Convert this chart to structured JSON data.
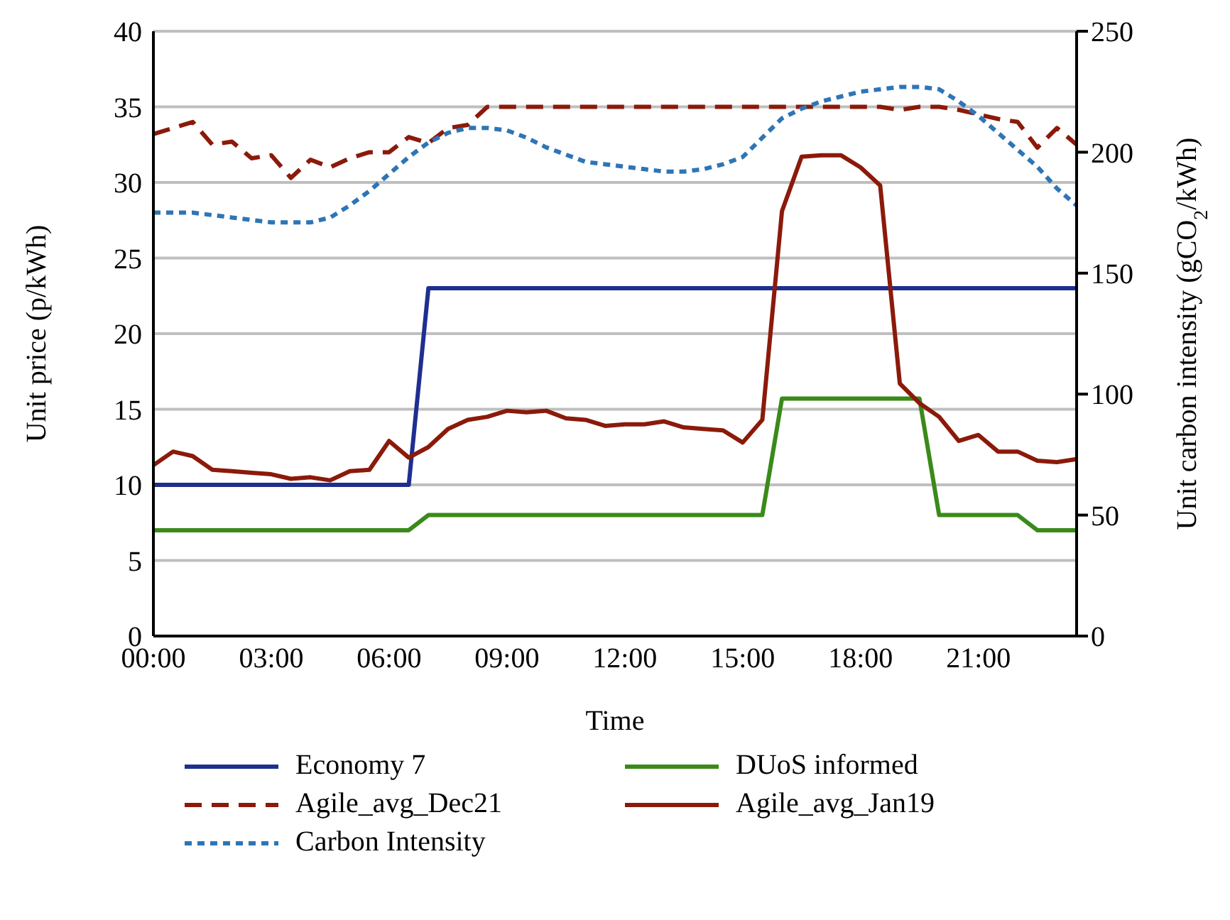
{
  "chart_data": {
    "type": "line",
    "xlabel": "Time",
    "ylabel": "Unit price (p/kWh)",
    "y2label": "Unit carbon intensity (gCO$_{2}$/kWh)",
    "x": [
      0,
      0.5,
      1,
      1.5,
      2,
      2.5,
      3,
      3.5,
      4,
      4.5,
      5,
      5.5,
      6,
      6.5,
      7,
      7.5,
      8,
      8.5,
      9,
      9.5,
      10,
      10.5,
      11,
      11.5,
      12,
      12.5,
      13,
      13.5,
      14,
      14.5,
      15,
      15.5,
      16,
      16.5,
      17,
      17.5,
      18,
      18.5,
      19,
      19.5,
      20,
      20.5,
      21,
      21.5,
      22,
      22.5,
      23,
      23.5
    ],
    "xlim": [
      0,
      23.5
    ],
    "xticks": [
      {
        "value": 0,
        "label": "00:00"
      },
      {
        "value": 3,
        "label": "03:00"
      },
      {
        "value": 6,
        "label": "06:00"
      },
      {
        "value": 9,
        "label": "09:00"
      },
      {
        "value": 12,
        "label": "12:00"
      },
      {
        "value": 15,
        "label": "15:00"
      },
      {
        "value": 18,
        "label": "18:00"
      },
      {
        "value": 21,
        "label": "21:00"
      }
    ],
    "ylim": [
      0,
      40
    ],
    "yticks": [
      0,
      5,
      10,
      15,
      20,
      25,
      30,
      35,
      40
    ],
    "y2lim": [
      0,
      250
    ],
    "y2ticks": [
      0,
      50,
      100,
      150,
      200,
      250
    ],
    "grid": "y",
    "legend": "bottom",
    "marker": "none",
    "series": [
      {
        "name": "Economy 7",
        "color": "#1f2f8f",
        "line_style": "solid",
        "values": [
          10,
          10,
          10,
          10,
          10,
          10,
          10,
          10,
          10,
          10,
          10,
          10,
          10,
          10,
          23,
          23,
          23,
          23,
          23,
          23,
          23,
          23,
          23,
          23,
          23,
          23,
          23,
          23,
          23,
          23,
          23,
          23,
          23,
          23,
          23,
          23,
          23,
          23,
          23,
          23,
          23,
          23,
          23,
          23,
          23,
          23,
          23,
          23
        ]
      },
      {
        "name": "DUoS informed",
        "color": "#3a8a1a",
        "line_style": "solid",
        "values": [
          7,
          7,
          7,
          7,
          7,
          7,
          7,
          7,
          7,
          7,
          7,
          7,
          7,
          7,
          8,
          8,
          8,
          8,
          8,
          8,
          8,
          8,
          8,
          8,
          8,
          8,
          8,
          8,
          8,
          8,
          8,
          8,
          15.7,
          15.7,
          15.7,
          15.7,
          15.7,
          15.7,
          15.7,
          15.7,
          8,
          8,
          8,
          8,
          8,
          7,
          7,
          7
        ]
      },
      {
        "name": "Agile_avg_Dec21",
        "color": "#8b1a0a",
        "line_style": "dashed",
        "values": [
          33.2,
          33.6,
          34.0,
          32.5,
          32.7,
          31.6,
          31.8,
          30.3,
          31.5,
          31.0,
          31.6,
          32.0,
          32.0,
          33.0,
          32.6,
          33.6,
          33.8,
          35,
          35,
          35,
          35,
          35,
          35,
          35,
          35,
          35,
          35,
          35,
          35,
          35,
          35,
          35,
          35,
          35,
          35,
          35,
          35,
          35,
          34.8,
          35,
          35,
          34.8,
          34.5,
          34.2,
          34.0,
          32.3,
          33.6,
          32.5
        ]
      },
      {
        "name": "Agile_avg_Jan19",
        "color": "#8b1a0a",
        "line_style": "solid",
        "values": [
          11.3,
          12.2,
          11.9,
          11.0,
          10.9,
          10.8,
          10.7,
          10.4,
          10.5,
          10.3,
          10.9,
          11.0,
          12.9,
          11.8,
          12.5,
          13.7,
          14.3,
          14.5,
          14.9,
          14.8,
          14.9,
          14.4,
          14.3,
          13.9,
          14.0,
          14.0,
          14.2,
          13.8,
          13.7,
          13.6,
          12.8,
          14.3,
          28.1,
          31.7,
          31.8,
          31.8,
          31.0,
          29.8,
          16.7,
          15.4,
          14.5,
          12.9,
          13.3,
          12.2,
          12.2,
          11.6,
          11.5,
          11.7
        ]
      },
      {
        "name": "Carbon Intensity",
        "color": "#2e75b6",
        "line_style": "dotted",
        "axis": "y2",
        "values": [
          175,
          175,
          175,
          174,
          173,
          172,
          171,
          171,
          171,
          173,
          178,
          184,
          191,
          198,
          204,
          208,
          210,
          210,
          209,
          206,
          202,
          199,
          196,
          195,
          194,
          193,
          192,
          192,
          193,
          195,
          198,
          206,
          214,
          218,
          221,
          223,
          225,
          226,
          227,
          227,
          226,
          221,
          215,
          208,
          201,
          194,
          185,
          178
        ]
      }
    ]
  }
}
